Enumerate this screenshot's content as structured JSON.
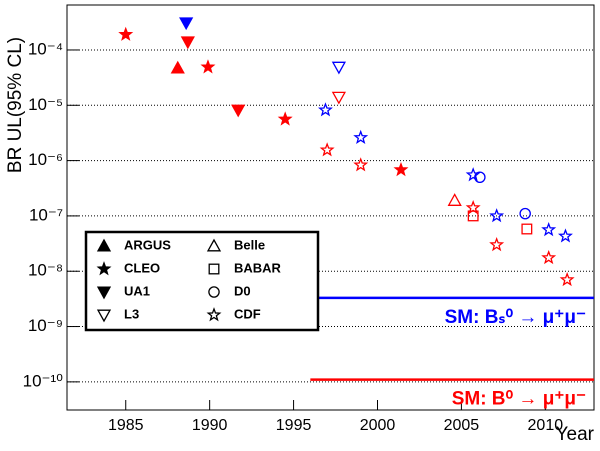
{
  "chart_data": {
    "type": "scatter",
    "x_label": "Year",
    "y_label": "BR UL(95% CL)",
    "log_y": true,
    "grid": true,
    "grid_style": "dotted",
    "legend_location": "lower left",
    "xlim": [
      1981.5,
      2012.9
    ],
    "xticks": [
      1985,
      1990,
      1995,
      2000,
      2005,
      2010
    ],
    "ylim": [
      3.1e-11,
      0.00065
    ],
    "yticks": [
      {
        "value": 1e-10,
        "label": "10⁻¹⁰"
      },
      {
        "value": 1e-09,
        "label": "10⁻⁹"
      },
      {
        "value": 1e-08,
        "label": "10⁻⁸"
      },
      {
        "value": 1e-07,
        "label": "10⁻⁷"
      },
      {
        "value": 1e-06,
        "label": "10⁻⁶"
      },
      {
        "value": 1e-05,
        "label": "10⁻⁵"
      },
      {
        "value": 0.0001,
        "label": "10⁻⁴"
      }
    ],
    "series": [
      {
        "name": "ARGUS",
        "marker": "triangle-up",
        "filled": true,
        "x": [
          1988.1
        ],
        "values": [
          4.7e-05
        ],
        "colors": [
          "#ff0000"
        ]
      },
      {
        "name": "CLEO",
        "marker": "star",
        "filled": true,
        "x": [
          1985.0,
          1989.9,
          1994.5,
          2001.4
        ],
        "values": [
          0.00019,
          4.9e-05,
          5.6e-06,
          6.8e-07
        ],
        "colors": [
          "#ff0000",
          "#ff0000",
          "#ff0000",
          "#ff0000"
        ]
      },
      {
        "name": "UA1",
        "marker": "triangle-down",
        "filled": true,
        "x": [
          1988.7,
          1991.7,
          1988.6
        ],
        "values": [
          0.00014,
          8.2e-06,
          0.00031
        ],
        "colors": [
          "#ff0000",
          "#ff0000",
          "#0000ff"
        ]
      },
      {
        "name": "L3",
        "marker": "triangle-down",
        "filled": false,
        "x": [
          1997.7,
          1997.7
        ],
        "values": [
          1.4e-05,
          4.9e-05
        ],
        "colors": [
          "#ff0000",
          "#0000ff"
        ]
      },
      {
        "name": "Belle",
        "marker": "triangle-up",
        "filled": false,
        "x": [
          2004.6
        ],
        "values": [
          1.9e-07
        ],
        "colors": [
          "#ff0000"
        ]
      },
      {
        "name": "BABAR",
        "marker": "square",
        "filled": false,
        "x": [
          2005.7,
          2008.9
        ],
        "values": [
          1e-07,
          5.8e-08
        ],
        "colors": [
          "#ff0000",
          "#ff0000"
        ]
      },
      {
        "name": "D0",
        "marker": "circle",
        "filled": false,
        "x": [
          2006.1,
          2008.8
        ],
        "values": [
          5e-07,
          1.1e-07
        ],
        "colors": [
          "#0000ff",
          "#0000ff"
        ]
      },
      {
        "name": "CDF",
        "marker": "star",
        "filled": false,
        "x": [
          1997.0,
          1999.0,
          2005.7,
          2007.1,
          2010.2,
          2011.3,
          1996.9,
          1999.0,
          2005.7,
          2007.1,
          2010.2,
          2011.2
        ],
        "values": [
          1.55e-06,
          8.3e-07,
          1.4e-07,
          3e-08,
          1.75e-08,
          7e-09,
          8.2e-06,
          2.6e-06,
          5.5e-07,
          1e-07,
          5.6e-08,
          4.3e-08
        ],
        "colors": [
          "#ff0000",
          "#ff0000",
          "#ff0000",
          "#ff0000",
          "#ff0000",
          "#ff0000",
          "#0000ff",
          "#0000ff",
          "#0000ff",
          "#0000ff",
          "#0000ff",
          "#0000ff"
        ]
      }
    ],
    "reference_lines": [
      {
        "label": "SM: Bₛ⁰ → μ⁺μ⁻",
        "value": 3.3e-09,
        "x_start": 1996,
        "color": "#0000ff"
      },
      {
        "label": "SM: B⁰ → μ⁺μ⁻",
        "value": 1.1e-10,
        "x_start": 1996,
        "color": "#ff0000"
      }
    ]
  }
}
